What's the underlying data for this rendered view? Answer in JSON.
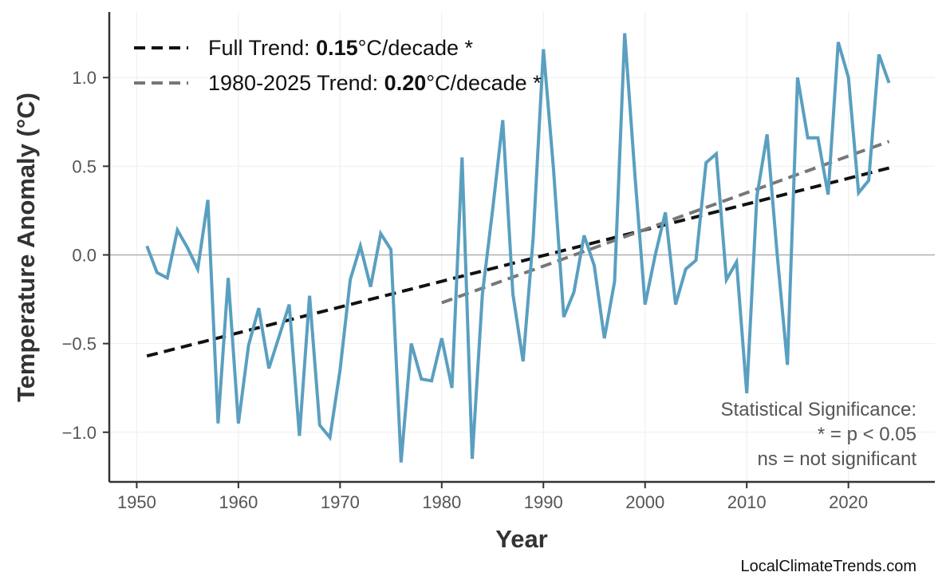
{
  "chart_data": {
    "type": "line",
    "title": "",
    "xlabel": "Year",
    "ylabel": "Temperature Anomaly (°C)",
    "xlim": [
      1947.3,
      2028.5
    ],
    "ylim": [
      -1.28,
      1.37
    ],
    "grid": true,
    "legend_position": "top-left",
    "x_ticks": [
      1950,
      1960,
      1970,
      1980,
      1990,
      2000,
      2010,
      2020
    ],
    "x_tick_labels": [
      "1950",
      "1960",
      "1970",
      "1980",
      "1990",
      "2000",
      "2010",
      "2020"
    ],
    "y_ticks": [
      -1.0,
      -0.5,
      0.0,
      0.5,
      1.0
    ],
    "y_tick_labels": [
      "−1.0",
      "−0.5",
      "0.0",
      "0.5",
      "1.0"
    ],
    "series": [
      {
        "color": "#5a9fc0",
        "x": [
          1951,
          1952,
          1953,
          1954,
          1955,
          1956,
          1957,
          1958,
          1959,
          1960,
          1961,
          1962,
          1963,
          1964,
          1965,
          1966,
          1967,
          1968,
          1969,
          1970,
          1971,
          1972,
          1973,
          1974,
          1975,
          1976,
          1977,
          1978,
          1979,
          1980,
          1981,
          1982,
          1983,
          1984,
          1985,
          1986,
          1987,
          1988,
          1989,
          1990,
          1991,
          1992,
          1993,
          1994,
          1995,
          1996,
          1997,
          1998,
          1999,
          2000,
          2001,
          2002,
          2003,
          2004,
          2005,
          2006,
          2007,
          2008,
          2009,
          2010,
          2011,
          2012,
          2013,
          2014,
          2015,
          2016,
          2017,
          2018,
          2019,
          2020,
          2021,
          2022,
          2023,
          2024
        ],
        "y": [
          0.05,
          -0.1,
          -0.13,
          0.14,
          0.04,
          -0.08,
          0.31,
          -0.95,
          -0.13,
          -0.95,
          -0.51,
          -0.3,
          -0.64,
          -0.46,
          -0.28,
          -1.02,
          -0.23,
          -0.96,
          -1.03,
          -0.65,
          -0.14,
          0.05,
          -0.18,
          0.12,
          0.03,
          -1.17,
          -0.5,
          -0.7,
          -0.71,
          -0.47,
          -0.75,
          0.55,
          -1.15,
          -0.22,
          0.25,
          0.76,
          -0.22,
          -0.6,
          0.1,
          1.16,
          0.48,
          -0.35,
          -0.21,
          0.11,
          -0.06,
          -0.47,
          -0.15,
          1.25,
          0.45,
          -0.28,
          0.0,
          0.24,
          -0.28,
          -0.08,
          -0.03,
          0.52,
          0.57,
          -0.14,
          -0.04,
          -0.78,
          0.33,
          0.68,
          0.0,
          -0.62,
          1.0,
          0.66,
          0.66,
          0.34,
          1.2,
          1.0,
          0.35,
          0.42,
          1.13,
          0.97
        ]
      }
    ],
    "trend_lines": [
      {
        "name": "Full Trend",
        "x": [
          1951,
          2024
        ],
        "y": [
          -0.57,
          0.49
        ],
        "color": "#111111",
        "rate": "0.15",
        "unit": "°C/decade",
        "sig": "*",
        "prefix": "Full Trend: "
      },
      {
        "name": "1980-2025 Trend",
        "x": [
          1980,
          2024
        ],
        "y": [
          -0.27,
          0.64
        ],
        "color": "#777777",
        "rate": "0.20",
        "unit": "°C/decade",
        "sig": "*",
        "prefix": "1980-2025 Trend: "
      }
    ],
    "annotations": [
      "Statistical Significance:",
      "* = p < 0.05",
      "ns = not significant"
    ],
    "watermark": "LocalClimateTrends.com"
  }
}
